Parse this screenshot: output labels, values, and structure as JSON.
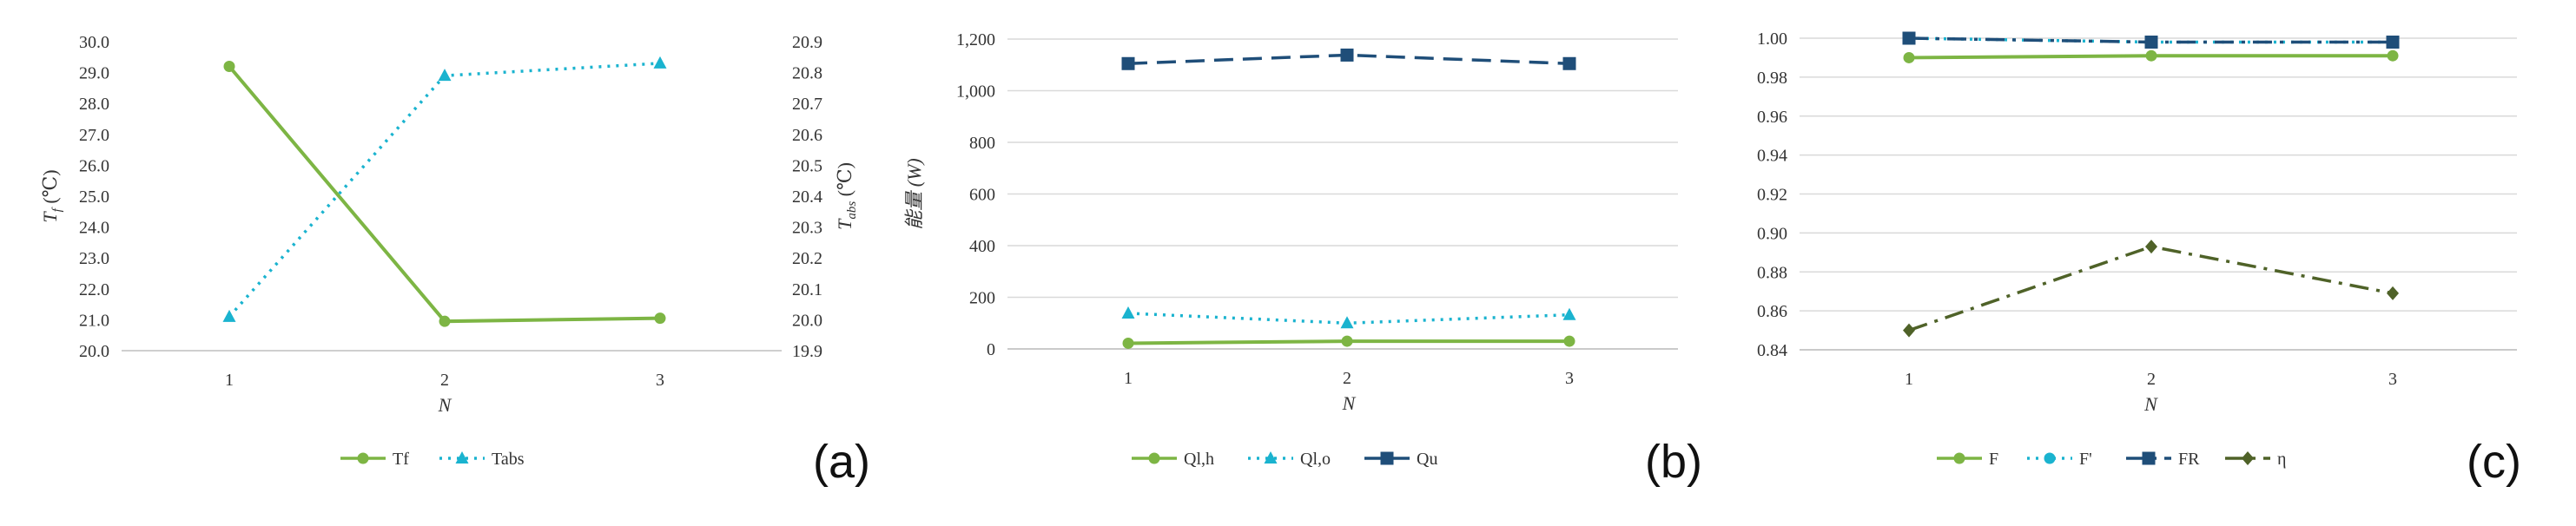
{
  "colors": {
    "green": "#7db544",
    "cyan": "#1ab3cf",
    "navy": "#1f4e79",
    "olive": "#4f6228"
  },
  "chart_data": [
    {
      "type": "line",
      "panel_label": "(a)",
      "x": [
        "1",
        "2",
        "3"
      ],
      "xlabel": "N",
      "ylabel": "Tf (℃)",
      "ylabel_main": "T",
      "ylabel_sub": "f",
      "ylabel_unit": " (℃)",
      "ylim": [
        20.0,
        30.0
      ],
      "yticks": [
        "20.0",
        "21.0",
        "22.0",
        "23.0",
        "24.0",
        "25.0",
        "26.0",
        "27.0",
        "28.0",
        "29.0",
        "30.0"
      ],
      "y2label": "Tabs (℃)",
      "y2label_main": "T",
      "y2label_sub": "abs",
      "y2label_unit": " (℃)",
      "y2lim": [
        19.9,
        20.9
      ],
      "y2ticks": [
        "19.9",
        "20.0",
        "20.1",
        "20.2",
        "20.3",
        "20.4",
        "20.5",
        "20.6",
        "20.7",
        "20.8",
        "20.9"
      ],
      "grid": false,
      "legend": "bottom",
      "series": [
        {
          "name": "Tf",
          "axis": "left",
          "values": [
            29.2,
            20.95,
            21.05
          ],
          "color": "#7db544",
          "dash": "solid",
          "marker": "circle"
        },
        {
          "name": "Tabs",
          "axis": "right",
          "values": [
            20.01,
            20.79,
            20.83
          ],
          "color": "#1ab3cf",
          "dash": "dot",
          "marker": "triangle"
        }
      ]
    },
    {
      "type": "line",
      "panel_label": "(b)",
      "x": [
        "1",
        "2",
        "3"
      ],
      "xlabel": "N",
      "ylabel": "能量 (W)",
      "ylim": [
        0,
        1200
      ],
      "yticks": [
        "0",
        "200",
        "400",
        "600",
        "800",
        "1,000",
        "1,200"
      ],
      "grid": true,
      "legend": "bottom",
      "series": [
        {
          "name": "Ql,h",
          "values": [
            22,
            30,
            30
          ],
          "color": "#7db544",
          "dash": "solid",
          "marker": "circle"
        },
        {
          "name": "Ql,o",
          "values": [
            138,
            100,
            132
          ],
          "color": "#1ab3cf",
          "dash": "dot",
          "marker": "triangle"
        },
        {
          "name": "Qu",
          "values": [
            1105,
            1138,
            1105
          ],
          "color": "#1f4e79",
          "dash": "dash",
          "marker": "square"
        }
      ]
    },
    {
      "type": "line",
      "panel_label": "(c)",
      "x": [
        "1",
        "2",
        "3"
      ],
      "xlabel": "N",
      "ylabel": "",
      "ylim": [
        0.84,
        1.0
      ],
      "yticks": [
        "0.84",
        "0.86",
        "0.88",
        "0.90",
        "0.92",
        "0.94",
        "0.96",
        "0.98",
        "1.00"
      ],
      "grid": true,
      "legend": "bottom",
      "series": [
        {
          "name": "F",
          "values": [
            0.99,
            0.991,
            0.991
          ],
          "color": "#7db544",
          "dash": "solid",
          "marker": "circle"
        },
        {
          "name": "F'",
          "values": [
            1.0,
            0.998,
            0.998
          ],
          "color": "#1ab3cf",
          "dash": "dot",
          "marker": "circle"
        },
        {
          "name": "FR",
          "values": [
            1.0,
            0.998,
            0.998
          ],
          "color": "#1f4e79",
          "dash": "dashdot",
          "marker": "square"
        },
        {
          "name": "η",
          "values": [
            0.85,
            0.893,
            0.869
          ],
          "color": "#4f6228",
          "dash": "dashdot",
          "marker": "diamond"
        }
      ]
    }
  ]
}
